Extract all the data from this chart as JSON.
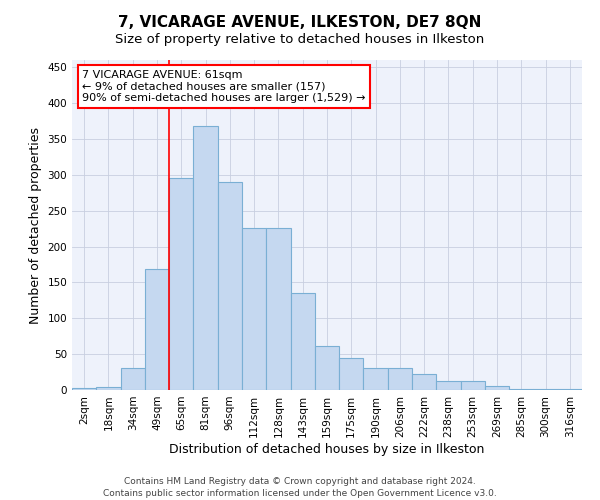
{
  "title": "7, VICARAGE AVENUE, ILKESTON, DE7 8QN",
  "subtitle": "Size of property relative to detached houses in Ilkeston",
  "xlabel": "Distribution of detached houses by size in Ilkeston",
  "ylabel": "Number of detached properties",
  "bar_labels": [
    "2sqm",
    "18sqm",
    "34sqm",
    "49sqm",
    "65sqm",
    "81sqm",
    "96sqm",
    "112sqm",
    "128sqm",
    "143sqm",
    "159sqm",
    "175sqm",
    "190sqm",
    "206sqm",
    "222sqm",
    "238sqm",
    "253sqm",
    "269sqm",
    "285sqm",
    "300sqm",
    "316sqm"
  ],
  "bar_values": [
    3,
    4,
    30,
    168,
    295,
    368,
    290,
    226,
    226,
    135,
    62,
    44,
    31,
    31,
    22,
    12,
    12,
    5,
    2,
    2,
    1
  ],
  "bar_color": "#c5d8f0",
  "bar_edge_color": "#7aafd4",
  "annotation_line1": "7 VICARAGE AVENUE: 61sqm",
  "annotation_line2": "← 9% of detached houses are smaller (157)",
  "annotation_line3": "90% of semi-detached houses are larger (1,529) →",
  "vline_position": 4.0,
  "ylim": [
    0,
    460
  ],
  "yticks": [
    0,
    50,
    100,
    150,
    200,
    250,
    300,
    350,
    400,
    450
  ],
  "background_color": "#eef2fb",
  "grid_color": "#c8cfe0",
  "footer_line1": "Contains HM Land Registry data © Crown copyright and database right 2024.",
  "footer_line2": "Contains public sector information licensed under the Open Government Licence v3.0.",
  "title_fontsize": 11,
  "subtitle_fontsize": 9.5,
  "xlabel_fontsize": 9,
  "ylabel_fontsize": 9,
  "tick_fontsize": 7.5,
  "footer_fontsize": 6.5,
  "annotation_fontsize": 8
}
